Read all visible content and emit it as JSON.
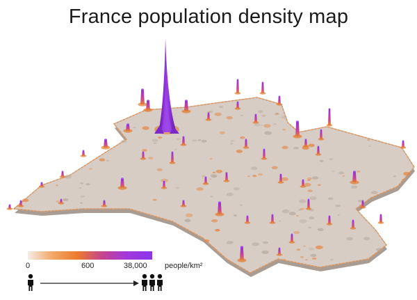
{
  "title": "France population density map",
  "legend": {
    "min_label": "0",
    "mid_label": "600",
    "max_label": "38,000",
    "unit": "people/km²",
    "gradient_colors": [
      "#f5ede6",
      "#f2a766",
      "#ec7a2e",
      "#c5448f",
      "#a138dd",
      "#8a35ea"
    ],
    "icon_left": "person-icon",
    "icon_right": "group-of-people-icon"
  },
  "colors": {
    "terrain": "#d7cdc5",
    "terrain_shadow": "#b9aca2",
    "low_spike": "#e8822f",
    "high_spike": "#8f2fe0"
  }
}
